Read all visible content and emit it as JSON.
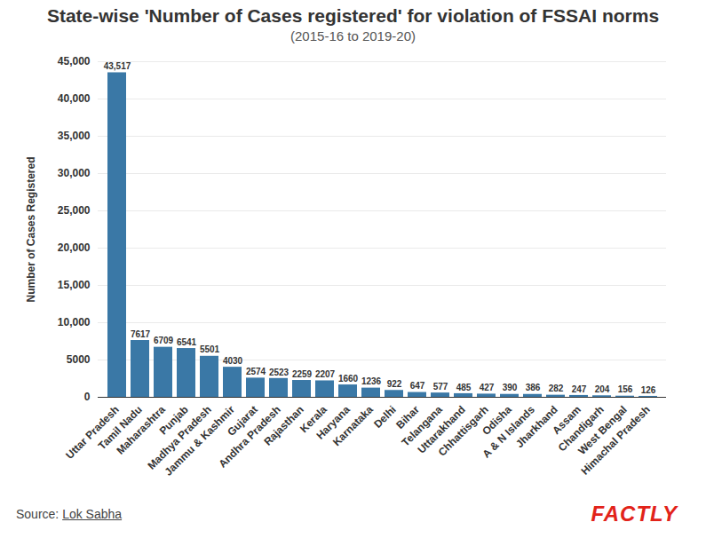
{
  "chart_data": {
    "type": "bar",
    "title": "State-wise 'Number of Cases registered' for violation of FSSAI norms",
    "subtitle": "(2015-16 to 2019-20)",
    "y_label": "Number of Cases Registered",
    "categories": [
      "Uttar Pradesh",
      "Tamil Nadu",
      "Maharashtra",
      "Punjab",
      "Madhya Pradesh",
      "Jammu & Kashmir",
      "Gujarat",
      "Andhra Pradesh",
      "Rajasthan",
      "Kerala",
      "Haryana",
      "Karnataka",
      "Delhi",
      "Bihar",
      "Telangana",
      "Uttarakhand",
      "Chhattisgarh",
      "Odisha",
      "A & N Islands",
      "Jharkhand",
      "Assam",
      "Chandigarh",
      "West Bengal",
      "Himachal Pradesh"
    ],
    "values": [
      43517,
      7617,
      6709,
      6541,
      5501,
      4030,
      2574,
      2523,
      2259,
      2207,
      1660,
      1236,
      922,
      647,
      577,
      485,
      427,
      390,
      386,
      282,
      247,
      204,
      156,
      126
    ],
    "value_labels": [
      "43,517",
      "7617",
      "6709",
      "6541",
      "5501",
      "4030",
      "2574",
      "2523",
      "2259",
      "2207",
      "1660",
      "1236",
      "922",
      "647",
      "577",
      "485",
      "427",
      "390",
      "386",
      "282",
      "247",
      "204",
      "156",
      "126"
    ],
    "color": "#3a78a6",
    "ylim": [
      0,
      45000
    ],
    "yticks": [
      0,
      5000,
      {
        "value": 10000,
        "label": "10,000"
      },
      {
        "value": 15000,
        "label": "15,000"
      },
      {
        "value": 20000,
        "label": "20,000"
      },
      {
        "value": 25000,
        "label": "25,000"
      },
      {
        "value": 30000,
        "label": "30,000"
      },
      {
        "value": 35000,
        "label": "35,000"
      },
      {
        "value": 40000,
        "label": "40,000"
      },
      {
        "value": 45000,
        "label": "45,000"
      }
    ],
    "grid": true,
    "data_labels": true,
    "source_label": "Source:",
    "source": "Lok Sabha",
    "logo": "FACTLY"
  }
}
